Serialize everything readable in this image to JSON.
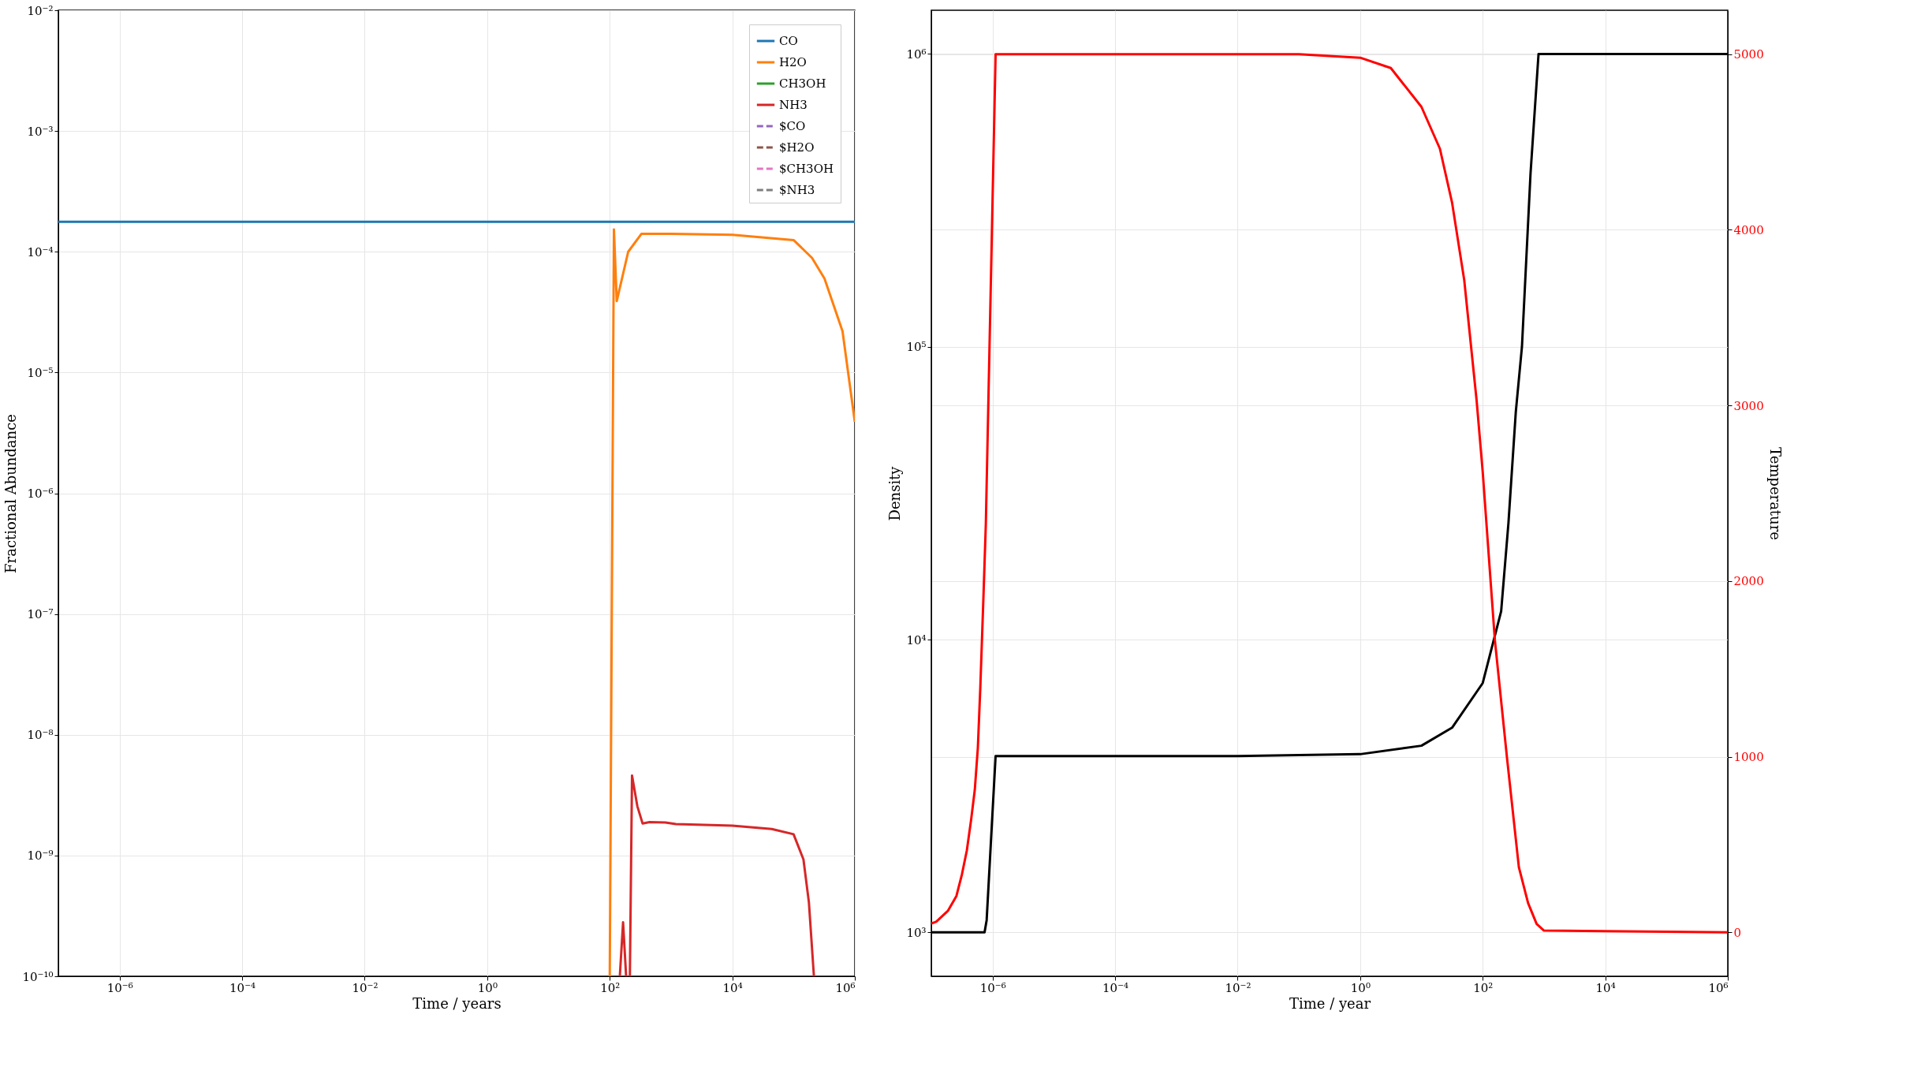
{
  "chart_data": [
    {
      "type": "line",
      "xlabel": "Time / years",
      "ylabel": "Fractional Abundance",
      "log": "xy",
      "grid": true,
      "legend": "top right",
      "xlim": [
        1e-07,
        1000000.0
      ],
      "ylim": [
        1e-10,
        0.01
      ],
      "xticks": [
        {
          "value": 1e-06,
          "label": "10⁻⁶"
        },
        {
          "value": 0.0001,
          "label": "10⁻⁴"
        },
        {
          "value": 0.01,
          "label": "10⁻²"
        },
        {
          "value": 1,
          "label": "10⁰"
        },
        {
          "value": 100,
          "label": "10²"
        },
        {
          "value": 10000.0,
          "label": "10⁴"
        },
        {
          "value": 1000000.0,
          "label": "10⁶"
        }
      ],
      "yticks": [
        {
          "value": 1e-10,
          "label": "10⁻¹⁰"
        },
        {
          "value": 1e-09,
          "label": "10⁻⁹"
        },
        {
          "value": 1e-08,
          "label": "10⁻⁸"
        },
        {
          "value": 1e-07,
          "label": "10⁻⁷"
        },
        {
          "value": 1e-06,
          "label": "10⁻⁶"
        },
        {
          "value": 1e-05,
          "label": "10⁻⁵"
        },
        {
          "value": 0.0001,
          "label": "10⁻⁴"
        },
        {
          "value": 0.001,
          "label": "10⁻³"
        },
        {
          "value": 0.01,
          "label": "10⁻²"
        }
      ],
      "series": [
        {
          "name": "CO",
          "color": "#1f77b4",
          "x": [
            1e-07,
            1000000.0
          ],
          "values": [
            0.000177,
            0.000177
          ]
        },
        {
          "name": "H2O",
          "color": "#ff7f0e",
          "x": [
            100,
            117,
            130,
            200,
            330,
            1000,
            10000.0,
            100000.0,
            200000.0,
            320000.0,
            630000.0,
            1000000.0
          ],
          "values": [
            1e-10,
            0.000153,
            3.9e-05,
            0.0001,
            0.000141,
            0.000141,
            0.000138,
            0.000125,
            8.9e-05,
            6e-05,
            2.2e-05,
            3.9e-06
          ]
        },
        {
          "name": "CH3OH",
          "color": "#2ca02c"
        },
        {
          "name": "NH3",
          "color": "#d62728",
          "x": [
            146,
            165,
            185,
            200,
            213,
            231,
            282,
            344,
            446,
            810,
            1200,
            10000.0,
            44000.0,
            100000.0,
            145000.0,
            178000.0,
            215000.0
          ],
          "values": [
            1e-10,
            2.8e-10,
            1e-10,
            null,
            1e-10,
            4.6e-09,
            2.56e-09,
            1.84e-09,
            1.89e-09,
            1.88e-09,
            1.82e-09,
            1.77e-09,
            1.66e-09,
            1.5e-09,
            9.3e-10,
            4.1e-10,
            1e-10
          ]
        },
        {
          "name": "$CO",
          "color": "#9467bd",
          "line_style": "dashed"
        },
        {
          "name": "$H2O",
          "color": "#8c564b",
          "line_style": "dashed"
        },
        {
          "name": "$CH3OH",
          "color": "#e377c2",
          "line_style": "dashed"
        },
        {
          "name": "$NH3",
          "color": "#7f7f7f",
          "line_style": "dashed"
        }
      ]
    },
    {
      "type": "line",
      "xlabel": "Time / year",
      "ylabel": "Density",
      "y2label": "Temperature",
      "log": "xy",
      "grid": true,
      "xlim": [
        1e-07,
        1000000.0
      ],
      "ylim": [
        708,
        1410000.0
      ],
      "y2lim": [
        -250,
        5250
      ],
      "xticks": [
        {
          "value": 1e-06,
          "label": "10⁻⁶"
        },
        {
          "value": 0.0001,
          "label": "10⁻⁴"
        },
        {
          "value": 0.01,
          "label": "10⁻²"
        },
        {
          "value": 1,
          "label": "10⁰"
        },
        {
          "value": 100,
          "label": "10²"
        },
        {
          "value": 10000.0,
          "label": "10⁴"
        },
        {
          "value": 1000000.0,
          "label": "10⁶"
        }
      ],
      "yticks": [
        {
          "value": 1000.0,
          "label": "10³"
        },
        {
          "value": 10000.0,
          "label": "10⁴"
        },
        {
          "value": 100000.0,
          "label": "10⁵"
        },
        {
          "value": 1000000.0,
          "label": "10⁶"
        }
      ],
      "y2ticks": [
        0,
        1000,
        2000,
        3000,
        4000,
        5000
      ],
      "series": [
        {
          "color": "#000000",
          "x": [
            1e-07,
            7.4e-07,
            8e-07,
            1.12e-06,
            0.01,
            1,
            10,
            31.6,
            100,
            200,
            263,
            347,
            437,
            603,
            815,
            1000000.0
          ],
          "values": [
            1000,
            1000,
            1100,
            4000,
            4000,
            4060,
            4340,
            5000,
            7100,
            12500,
            25000,
            60000,
            100000,
            390000,
            1000000,
            1000000
          ]
        },
        {
          "color": "#ff0000",
          "axis": "y2",
          "x": [
            1e-07,
            1.2e-07,
            1.86e-07,
            2.57e-07,
            3.16e-07,
            3.8e-07,
            4.47e-07,
            5.13e-07,
            5.75e-07,
            6.3e-07,
            7.08e-07,
            7.76e-07,
            1.12e-06,
            0.1,
            1,
            3.16,
            10,
            20,
            31.6,
            50,
            79.4,
            100,
            158,
            251,
            389,
            550,
            759,
            1000,
            1000000.0
          ],
          "values": [
            50,
            60,
            122,
            207,
            330,
            466,
            643,
            813,
            1051,
            1391,
            1901,
            2325,
            5000,
            5000,
            4980,
            4921,
            4700,
            4462,
            4155,
            3712,
            3031,
            2622,
            1663,
            983,
            371,
            167,
            48,
            10,
            0
          ]
        }
      ]
    }
  ]
}
